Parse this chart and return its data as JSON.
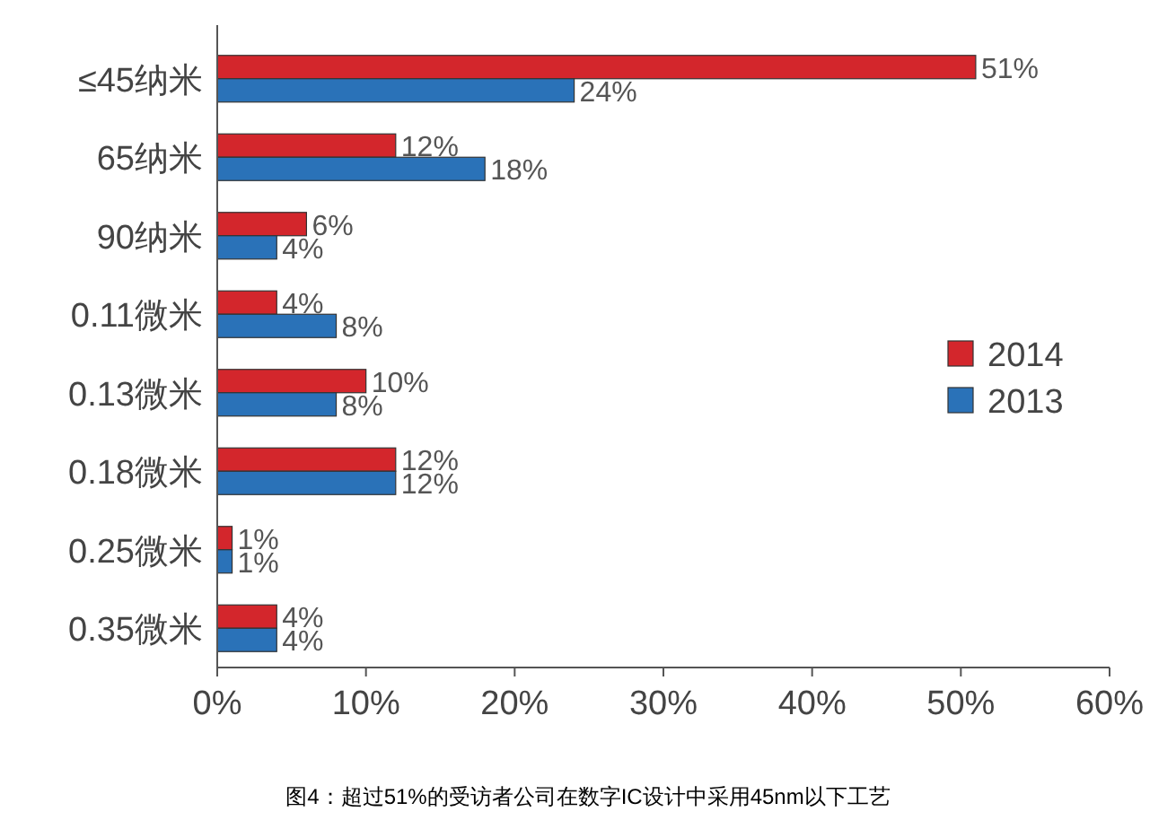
{
  "chart_data": {
    "type": "bar",
    "orientation": "horizontal",
    "categories": [
      "≤45纳米",
      "65纳米",
      "90纳米",
      "0.11微米",
      "0.13微米",
      "0.18微米",
      "0.25微米",
      "0.35微米"
    ],
    "series": [
      {
        "name": "2014",
        "color": "#d3262c",
        "values": [
          51,
          12,
          6,
          4,
          10,
          12,
          1,
          4
        ],
        "value_labels": [
          "51%",
          "12%",
          "6%",
          "4%",
          "10%",
          "12%",
          "1%",
          "4%"
        ]
      },
      {
        "name": "2013",
        "color": "#2a72b8",
        "values": [
          24,
          18,
          4,
          8,
          8,
          12,
          1,
          4
        ],
        "value_labels": [
          "24%",
          "18%",
          "4%",
          "8%",
          "8%",
          "12%",
          "1%",
          "4%"
        ]
      }
    ],
    "xlim": [
      0,
      60
    ],
    "xticks": [
      {
        "value": 0,
        "label": "0%"
      },
      {
        "value": 10,
        "label": "10%"
      },
      {
        "value": 20,
        "label": "20%"
      },
      {
        "value": 30,
        "label": "30%"
      },
      {
        "value": 40,
        "label": "40%"
      },
      {
        "value": 50,
        "label": "50%"
      },
      {
        "value": 60,
        "label": "60%"
      }
    ],
    "legend": "right",
    "grid": false,
    "annotations": [
      "图4：超过51%的受访者公司在数字IC设计中采用45nm以下工艺"
    ]
  }
}
